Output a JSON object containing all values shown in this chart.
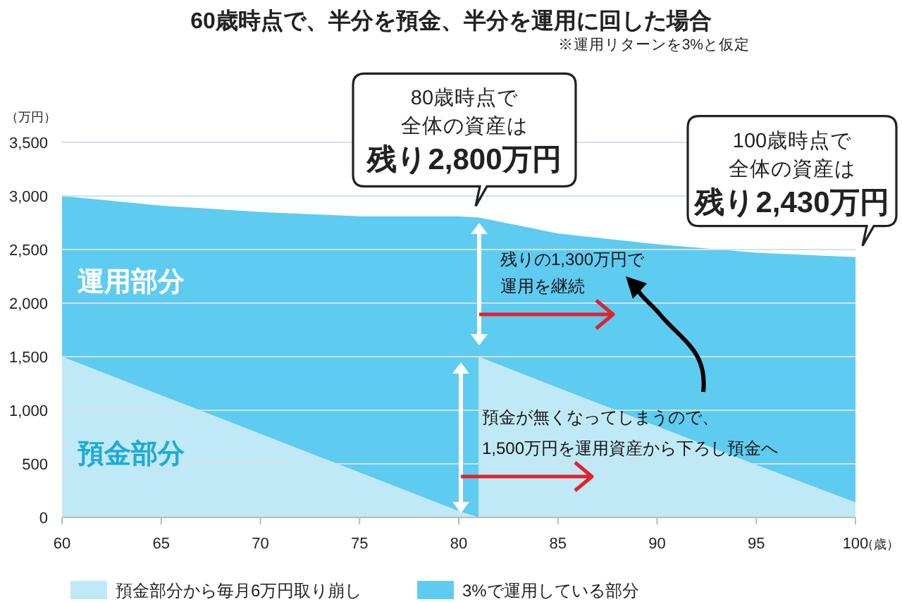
{
  "chart_data": {
    "type": "area",
    "stacked": true,
    "title": "60歳時点で、半分を預金、半分を運用に回した場合",
    "subtitle": "※運用リターンを3%と仮定",
    "ylabel": "（万円）",
    "xlabel": "（歳）",
    "series": [
      {
        "name": "預金部分から毎月6万円取り崩し",
        "color": "#c0e9f8",
        "x": [
          60,
          65,
          70,
          75,
          80,
          81,
          81,
          85,
          90,
          95,
          100
        ],
        "values": [
          1500,
          1140,
          780,
          420,
          60,
          0,
          1500,
          1210,
          850,
          490,
          140
        ]
      },
      {
        "name": "3%で運用している部分",
        "color": "#5ecbf0",
        "x": [
          60,
          65,
          70,
          75,
          80,
          81,
          81,
          85,
          90,
          95,
          100
        ],
        "values": [
          1500,
          1770,
          2070,
          2390,
          2750,
          2800,
          1300,
          1440,
          1700,
          1980,
          2290
        ]
      }
    ],
    "xlim": [
      60,
      100
    ],
    "xticks": [
      60,
      65,
      70,
      75,
      80,
      85,
      90,
      95,
      100
    ],
    "ylim": [
      0,
      3500
    ],
    "yticks": [
      0,
      {
        "value": 500,
        "label": "500"
      },
      {
        "value": 1000,
        "label": "1,000"
      },
      {
        "value": 1500,
        "label": "1,500"
      },
      {
        "value": 2000,
        "label": "2,000"
      },
      {
        "value": 2500,
        "label": "2,500"
      },
      {
        "value": 3000,
        "label": "3,000"
      },
      {
        "value": 3500,
        "label": "3,500"
      }
    ],
    "grid": "y",
    "legend": "bottom",
    "annotations": [
      "80歳時点で",
      "全体の資産は",
      {
        "text": "残り2,800万円",
        "x": 80,
        "y": 2800
      },
      "100歳時点で",
      "全体の資産は",
      {
        "text": "残り2,430万円",
        "x": 100,
        "y": 2430
      },
      "運用部分",
      "預金部分",
      "残りの1,300万円で",
      "運用を継続",
      "預金が無くなってしまうので、",
      "1,500万円を運用資産から下ろし預金へ"
    ]
  }
}
